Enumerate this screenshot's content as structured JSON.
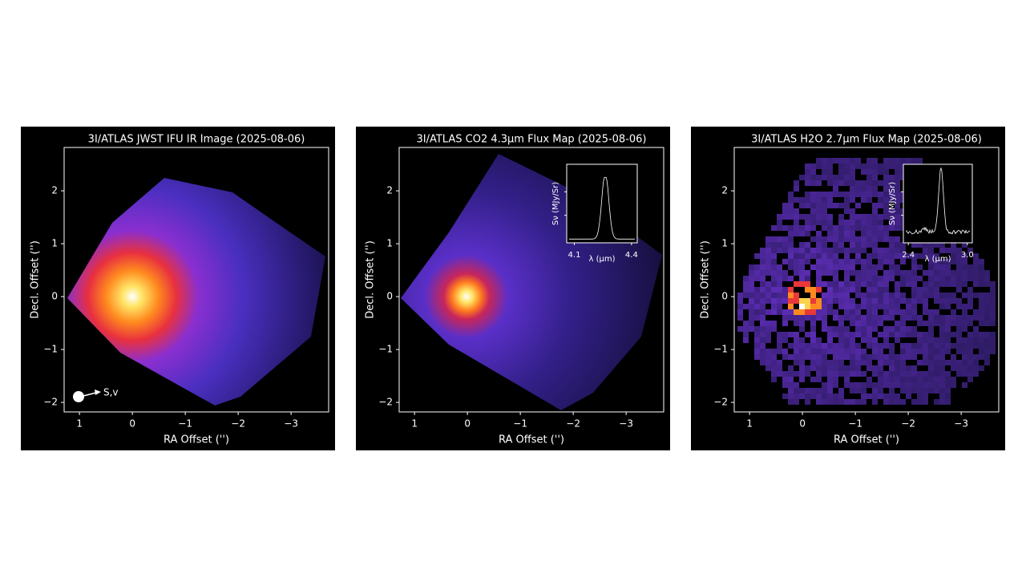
{
  "chart_data": [
    {
      "type": "image",
      "title": "3I/ATLAS JWST IFU IR Image (2025-08-06)",
      "x_label": "RA Offset ('')",
      "y_label": "Decl. Offset ('')",
      "xlim": [
        1.29,
        -3.71
      ],
      "ylim": [
        -2.18,
        2.82
      ],
      "xticks": [
        1,
        0,
        {
          "value": -1,
          "label": "−1"
        },
        {
          "value": -2,
          "label": "−2"
        },
        {
          "value": -3,
          "label": "−3"
        }
      ],
      "yticks": [
        {
          "value": -2,
          "label": "−2"
        },
        {
          "value": -1,
          "label": "−1"
        },
        0,
        1,
        2
      ],
      "annotation": "S,v"
    },
    {
      "type": "image",
      "title": "3I/ATLAS CO2 4.3μm Flux Map (2025-08-06)",
      "x_label": "RA Offset ('')",
      "y_label": "Decl. Offset ('')",
      "xlim": [
        1.29,
        -3.71
      ],
      "ylim": [
        -2.18,
        2.82
      ],
      "xticks": [
        1,
        0,
        {
          "value": -1,
          "label": "−1"
        },
        {
          "value": -2,
          "label": "−2"
        },
        {
          "value": -3,
          "label": "−3"
        }
      ],
      "yticks": [
        {
          "value": -2,
          "label": "−2"
        },
        {
          "value": -1,
          "label": "−1"
        },
        0,
        1,
        2
      ],
      "inset": {
        "type": "line",
        "x_label": "λ (μm)",
        "y_label": "Sν (MJy/Sr)",
        "xlim": [
          4.06,
          4.43
        ],
        "xticks": [
          4.1,
          4.4
        ]
      }
    },
    {
      "type": "image",
      "title": "3I/ATLAS H2O 2.7μm Flux Map (2025-08-06)",
      "x_label": "RA Offset ('')",
      "y_label": "Decl. Offset ('')",
      "xlim": [
        1.29,
        -3.71
      ],
      "ylim": [
        -2.18,
        2.82
      ],
      "xticks": [
        1,
        0,
        {
          "value": -1,
          "label": "−1"
        },
        {
          "value": -2,
          "label": "−2"
        },
        {
          "value": -3,
          "label": "−3"
        }
      ],
      "yticks": [
        {
          "value": -2,
          "label": "−2"
        },
        {
          "value": -1,
          "label": "−1"
        },
        0,
        1,
        2
      ],
      "inset": {
        "type": "line",
        "x_label": "λ (μm)",
        "y_label": "Sν (MJy/Sr)",
        "xlim": [
          2.35,
          3.05
        ],
        "xticks": [
          2.4,
          {
            "value": 3,
            "label": "3.0"
          }
        ]
      }
    }
  ]
}
